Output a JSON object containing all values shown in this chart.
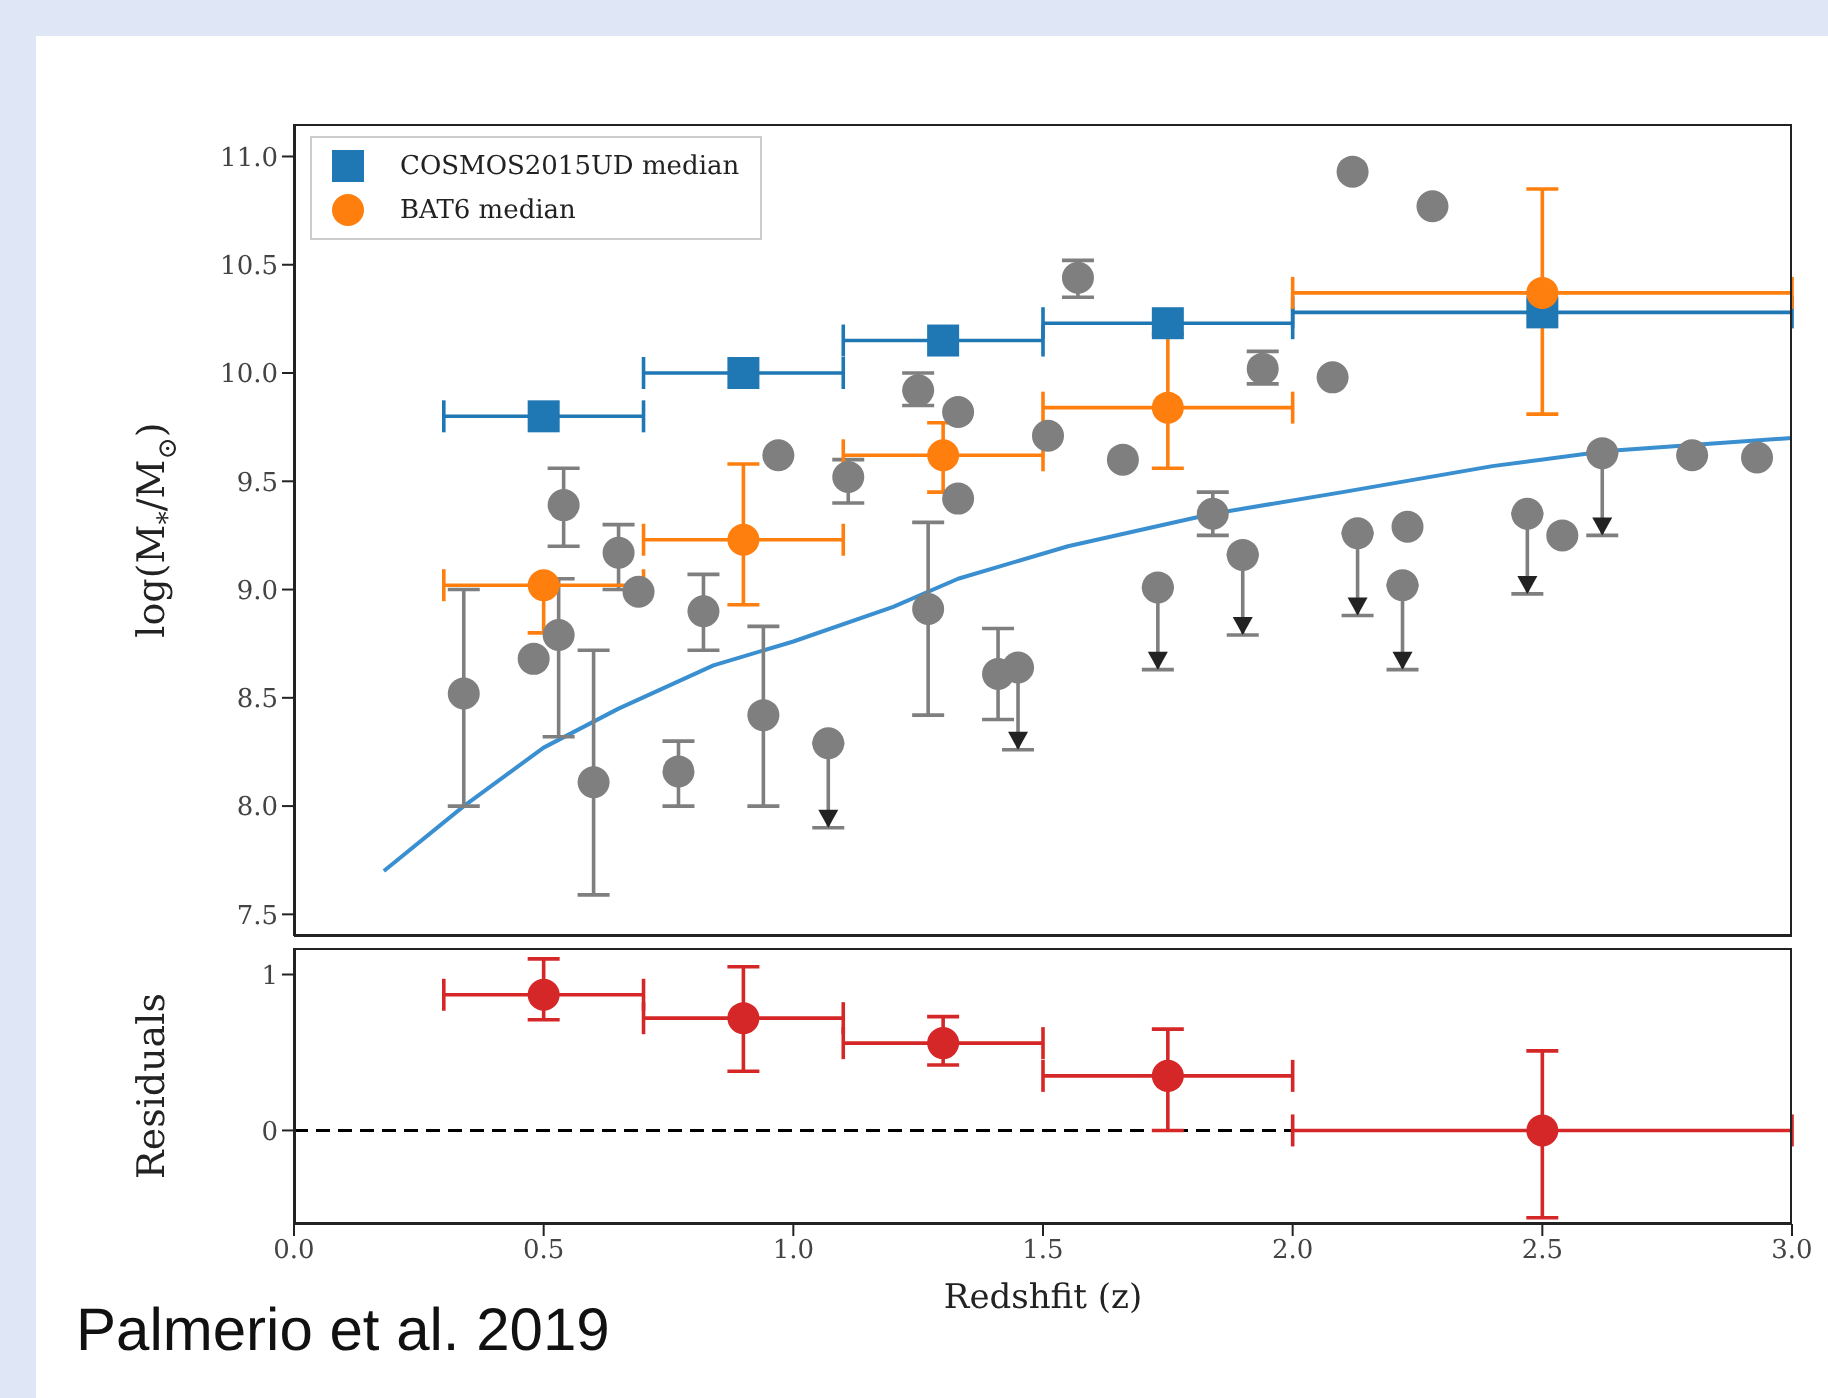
{
  "chart_data": [
    {
      "type": "scatter",
      "ylabel": "log(M$_{*}$/M$_{⊙}$)",
      "xlim": [
        0,
        3
      ],
      "xticks": [
        0,
        0.5,
        1,
        1.5,
        2,
        2.5,
        3
      ],
      "ylim": [
        7.4,
        11.15
      ],
      "yticks": [
        7.5,
        {
          "value": 8,
          "label": "8.0"
        },
        8.5,
        {
          "value": 9,
          "label": "9.0"
        },
        9.5,
        {
          "value": 10,
          "label": "10.0"
        },
        10.5,
        {
          "value": 11,
          "label": "11.0"
        }
      ],
      "tick_labels": "y",
      "legend": "top left",
      "grid": false,
      "series": [
        {
          "type": "line",
          "color": "#3a8fd0",
          "marker": "none",
          "x": [
            0.18,
            0.34,
            0.5,
            0.65,
            0.84,
            1.0,
            1.2,
            1.33,
            1.55,
            1.84,
            2.1,
            2.4,
            2.63,
            3.0
          ],
          "values": [
            7.7,
            8.0,
            8.27,
            8.45,
            8.65,
            8.76,
            8.92,
            9.05,
            9.2,
            9.35,
            9.45,
            9.57,
            9.64,
            9.7
          ]
        },
        {
          "color": "#7f7f7f",
          "marker": "circle",
          "x": [
            0.34,
            0.48,
            0.52,
            0.53,
            0.54,
            0.6,
            0.65,
            0.69,
            0.77,
            0.82,
            0.94,
            0.97,
            1.11,
            1.25,
            1.27,
            1.33,
            1.33,
            1.41,
            1.51,
            1.57,
            1.66,
            1.84,
            1.94,
            2.08,
            2.12,
            2.28,
            2.23,
            2.54,
            2.8,
            2.93
          ],
          "values": [
            8.52,
            8.68,
            null,
            8.79,
            9.39,
            8.11,
            9.17,
            8.99,
            8.16,
            8.9,
            8.42,
            9.62,
            9.52,
            9.92,
            8.91,
            9.82,
            9.42,
            8.61,
            9.71,
            10.44,
            9.6,
            9.35,
            10.02,
            9.98,
            10.93,
            10.77,
            9.29,
            9.25,
            9.62,
            9.61
          ],
          "errors": [
            [
              8.0,
              9.0
            ],
            null,
            null,
            [
              8.32,
              9.05
            ],
            [
              9.2,
              9.56
            ],
            [
              7.59,
              8.72
            ],
            [
              9.0,
              9.3
            ],
            null,
            [
              8.0,
              8.3
            ],
            [
              8.72,
              9.07
            ],
            [
              8.0,
              8.83
            ],
            null,
            [
              9.4,
              9.6
            ],
            [
              9.85,
              10.0
            ],
            [
              8.42,
              9.31
            ],
            null,
            null,
            [
              8.4,
              8.82
            ],
            null,
            [
              10.35,
              10.52
            ],
            null,
            [
              9.25,
              9.45
            ],
            [
              9.95,
              10.1
            ],
            null,
            null,
            null,
            null,
            null,
            null,
            null
          ]
        },
        {
          "color": "#7f7f7f",
          "marker": "circle",
          "x": [
            1.07,
            1.45,
            1.73,
            1.9,
            2.13,
            2.22,
            2.47,
            2.62
          ],
          "values": [
            8.29,
            8.64,
            9.01,
            9.16,
            9.26,
            9.02,
            9.35,
            9.63
          ],
          "errors": [
            [
              7.9,
              8.29
            ],
            [
              8.26,
              8.64
            ],
            [
              8.63,
              9.01
            ],
            [
              8.79,
              9.16
            ],
            [
              8.88,
              9.26
            ],
            [
              8.63,
              9.02
            ],
            [
              8.98,
              9.35
            ],
            [
              9.25,
              9.63
            ]
          ]
        },
        {
          "name": "COSMOS2015UD median",
          "marker": "square",
          "color": "#1f77b4",
          "x": [
            0.5,
            0.9,
            1.3,
            1.75,
            2.5
          ],
          "values": [
            9.8,
            10.0,
            10.15,
            10.23,
            10.28
          ],
          "xerrors": [
            [
              0.3,
              0.7
            ],
            [
              0.7,
              1.1
            ],
            [
              1.1,
              1.5
            ],
            [
              1.5,
              2.0
            ],
            [
              2.0,
              3.0
            ]
          ]
        },
        {
          "name": "BAT6 median",
          "marker": "circle",
          "color": "#ff7f0e",
          "x": [
            0.5,
            0.9,
            1.3,
            1.75,
            2.5
          ],
          "values": [
            9.02,
            9.23,
            9.62,
            9.84,
            10.37
          ],
          "errors": [
            [
              8.8,
              9.02
            ],
            [
              8.93,
              9.58
            ],
            [
              9.45,
              9.77
            ],
            [
              9.56,
              10.18
            ],
            [
              9.81,
              10.85
            ]
          ],
          "xerrors": [
            [
              0.3,
              0.7
            ],
            [
              0.7,
              1.1
            ],
            [
              1.1,
              1.5
            ],
            [
              1.5,
              2.0
            ],
            [
              2.0,
              3.0
            ]
          ]
        }
      ]
    },
    {
      "type": "scatter",
      "xlabel": "Redshfit (z)",
      "ylabel": "Residuals",
      "xlim": [
        0,
        3
      ],
      "xticks": [
        {
          "value": 0,
          "label": "0.0"
        },
        0.5,
        {
          "value": 1,
          "label": "1.0"
        },
        1.5,
        {
          "value": 2,
          "label": "2.0"
        },
        2.5,
        {
          "value": 3,
          "label": "3.0"
        }
      ],
      "ylim": [
        -0.6,
        1.17
      ],
      "yticks": [
        0,
        1
      ],
      "grid": false,
      "ref_lines": [
        {
          "axis": "y",
          "value": 0,
          "color": "#000000",
          "line_style": "dashed"
        }
      ],
      "annotations": [
        "Palmerio et al. 2019"
      ],
      "series": [
        {
          "marker": "circle",
          "color": "#d62728",
          "x": [
            0.5,
            0.9,
            1.3,
            1.75,
            2.5
          ],
          "values": [
            0.87,
            0.72,
            0.56,
            0.35,
            0.0
          ],
          "errors": [
            [
              0.71,
              1.1
            ],
            [
              0.38,
              1.05
            ],
            [
              0.42,
              0.73
            ],
            [
              0.0,
              0.65
            ],
            [
              -0.56,
              0.51
            ]
          ],
          "xerrors": [
            [
              0.3,
              0.7
            ],
            [
              0.7,
              1.1
            ],
            [
              1.1,
              1.5
            ],
            [
              1.5,
              2.0
            ],
            [
              2.0,
              3.0
            ]
          ]
        }
      ]
    }
  ]
}
